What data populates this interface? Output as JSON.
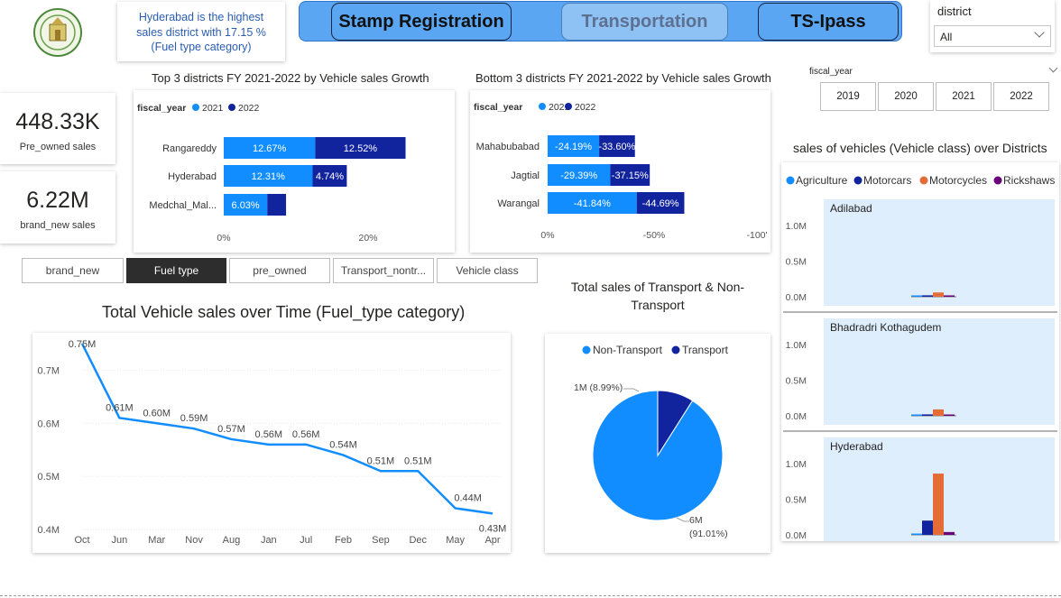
{
  "header": {
    "insight": [
      "Hyderabad is the highest",
      "sales district with 17.15 %",
      "(Fuel type category)"
    ],
    "nav": [
      "Stamp Registration",
      "Transportation",
      "TS-Ipass"
    ]
  },
  "slicers": {
    "district_label": "district",
    "district_value": "All",
    "fiscal_year_label": "fiscal_year",
    "fiscal_years": [
      "2019",
      "2020",
      "2021",
      "2022"
    ]
  },
  "kpis": [
    {
      "value": "448.33K",
      "label": "Pre_owned sales"
    },
    {
      "value": "6.22M",
      "label": "brand_new sales"
    }
  ],
  "tabs": [
    "brand_new",
    "Fuel type",
    "pre_owned",
    "Transport_nontr...",
    "Vehicle class"
  ],
  "colors": {
    "light_blue": "#118dff",
    "dark_blue": "#12239e",
    "orange": "#e66c37",
    "purple": "#6b007b",
    "panel_bg": "#deeefc"
  },
  "chart_data": [
    {
      "type": "bar",
      "title": "Top 3 districts FY 2021-2022 by Vehicle sales Growth",
      "legend_title": "fiscal_year",
      "categories": [
        "Rangareddy",
        "Hyderabad",
        "Medchal_Mal..."
      ],
      "series": [
        {
          "name": "2021",
          "values": [
            12.67,
            12.31,
            6.03
          ],
          "labels": [
            "12.67%",
            "12.31%",
            "6.03%"
          ]
        },
        {
          "name": "2022",
          "values": [
            12.52,
            4.74,
            2.6
          ],
          "labels": [
            "12.52%",
            "4.74%",
            ""
          ]
        }
      ],
      "xticks": [
        "0%",
        "20%"
      ]
    },
    {
      "type": "bar",
      "title": "Bottom 3 districts FY 2021-2022 by Vehicle sales Growth",
      "legend_title": "fiscal_year",
      "categories": [
        "Mahabubabad",
        "Jagtial",
        "Warangal"
      ],
      "series": [
        {
          "name": "2021",
          "values": [
            -24.19,
            -29.39,
            -41.84
          ],
          "labels": [
            "-24.19%",
            "-29.39%",
            "-41.84%"
          ]
        },
        {
          "name": "2022",
          "values": [
            -33.6,
            -37.15,
            -44.69
          ],
          "labels": [
            "-33.60%",
            "-37.15%",
            "-44.69%"
          ]
        }
      ],
      "xticks": [
        "0%",
        "-50%",
        "-100'"
      ]
    },
    {
      "type": "line",
      "title": "Total Vehicle sales over Time (Fuel_type category)",
      "x": [
        "Oct",
        "Jun",
        "Mar",
        "Nov",
        "Aug",
        "Jan",
        "Jul",
        "Feb",
        "Sep",
        "Dec",
        "May",
        "Apr"
      ],
      "values": [
        0.75,
        0.61,
        0.6,
        0.59,
        0.57,
        0.56,
        0.56,
        0.54,
        0.51,
        0.51,
        0.44,
        0.43
      ],
      "labels": [
        "0.75M",
        "0.61M",
        "0.60M",
        "0.59M",
        "0.57M",
        "0.56M",
        "0.56M",
        "0.54M",
        "0.51M",
        "0.51M",
        "0.44M",
        "0.43M"
      ],
      "yticks": [
        "0.4M",
        "0.5M",
        "0.6M",
        "0.7M"
      ],
      "ylim": [
        0.4,
        0.75
      ]
    },
    {
      "type": "pie",
      "title": "Total sales of Transport & Non-Transport",
      "title_lines": [
        "Total sales of Transport & Non-",
        "Transport"
      ],
      "slices": [
        {
          "name": "Non-Transport",
          "pct": 91.01,
          "label_a": "6M",
          "label_b": "(91.01%)"
        },
        {
          "name": "Transport",
          "pct": 8.99,
          "label_a": "1M (8.99%)",
          "label_b": ""
        }
      ]
    },
    {
      "type": "bar",
      "title": "sales of vehicles (Vehicle class) over Districts",
      "legend": [
        "Agriculture",
        "Motorcars",
        "Motorcycles",
        "Rickshaws"
      ],
      "yticks": [
        "0.0M",
        "0.5M",
        "1.0M"
      ],
      "ylim": [
        0,
        1.0
      ],
      "panels": [
        {
          "name": "Adilabad",
          "values": [
            0.01,
            0.02,
            0.06,
            0.01
          ]
        },
        {
          "name": "Bhadradri Kothagudem",
          "values": [
            0.01,
            0.02,
            0.09,
            0.01
          ]
        },
        {
          "name": "Hyderabad",
          "values": [
            0.01,
            0.2,
            0.86,
            0.04
          ]
        }
      ]
    }
  ]
}
